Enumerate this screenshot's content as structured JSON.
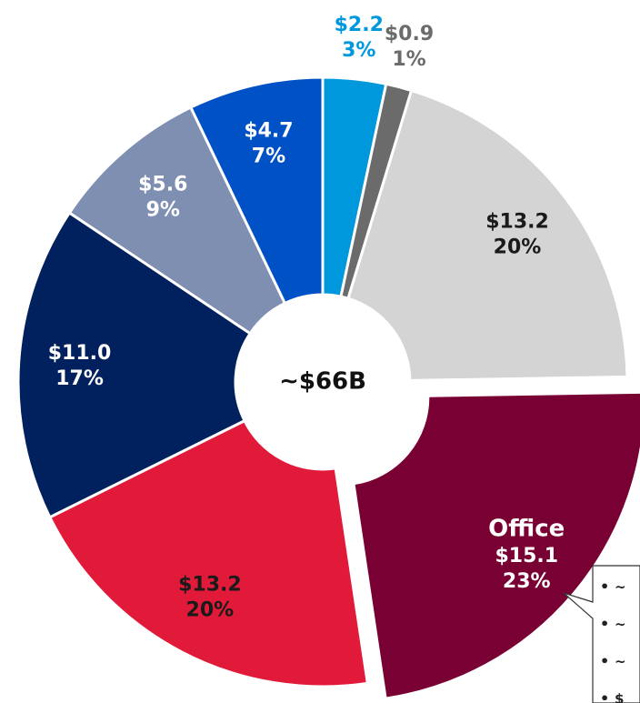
{
  "chart_data": {
    "type": "donut",
    "center_label": "~$66B",
    "categories": [
      null,
      null,
      null,
      "Office",
      null,
      null,
      null,
      null
    ],
    "values": [
      2.2,
      0.9,
      13.2,
      15.1,
      13.2,
      11.0,
      5.6,
      4.7
    ],
    "value_labels": [
      "$2.2",
      "$0.9",
      "$13.2",
      "$15.1",
      "$13.2",
      "$11.0",
      "$5.6",
      "$4.7"
    ],
    "shares": [
      3,
      1,
      20,
      23,
      20,
      17,
      9,
      7
    ],
    "share_labels": [
      "3%",
      "1%",
      "20%",
      "23%",
      "20%",
      "17%",
      "9%",
      "7%"
    ],
    "colors": [
      "#0098dc",
      "#6b6b6b",
      "#d4d4d4",
      "#780032",
      "#e21a3a",
      "#00205e",
      "#7f8fb2",
      "#0051c6"
    ],
    "exploded": "Office",
    "callout": {
      "items": [
        "~",
        "~",
        "~",
        "$"
      ]
    }
  }
}
